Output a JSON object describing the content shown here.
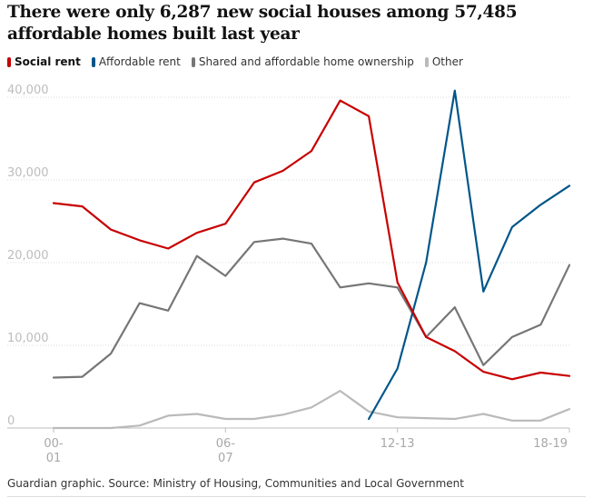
{
  "title": "There were only 6,287 new social houses among 57,485 affordable homes built last year",
  "source": "Guardian graphic. Source: Ministry of Housing, Communities and Local Government",
  "chart_data": {
    "type": "line",
    "title": "There were only 6,287 new social houses among 57,485 affordable homes built last year",
    "xlabel": "",
    "ylabel": "",
    "ylim": [
      0,
      40000
    ],
    "y_ticks": [
      0,
      10000,
      20000,
      30000,
      40000
    ],
    "y_tick_labels": [
      "0",
      "10,000",
      "20,000",
      "30,000",
      "40,000"
    ],
    "x": [
      "00-01",
      "01-02",
      "02-03",
      "03-04",
      "04-05",
      "05-06",
      "06-07",
      "07-08",
      "08-09",
      "09-10",
      "10-11",
      "11-12",
      "12-13",
      "13-14",
      "14-15",
      "15-16",
      "16-17",
      "17-18",
      "18-19"
    ],
    "x_ticks": [
      {
        "index": 0,
        "line1": "00-",
        "line2": "01"
      },
      {
        "index": 6,
        "line1": "06-",
        "line2": "07"
      },
      {
        "index": 12,
        "line1": "12-13",
        "line2": ""
      },
      {
        "index": 18,
        "line1": "18-19",
        "line2": ""
      }
    ],
    "grid": true,
    "legend_position": "top-left",
    "series": [
      {
        "name": "Social rent",
        "color": "#c70000",
        "primary": true,
        "values": [
          27200,
          26800,
          24000,
          22700,
          21700,
          23600,
          24700,
          29700,
          31100,
          33500,
          39600,
          37700,
          17600,
          11000,
          9300,
          6800,
          5900,
          6700,
          6300
        ]
      },
      {
        "name": "Affordable rent",
        "color": "#005689",
        "values": [
          null,
          null,
          null,
          null,
          null,
          null,
          null,
          null,
          null,
          null,
          null,
          1100,
          7200,
          20000,
          40800,
          16500,
          24300,
          27000,
          29300
        ]
      },
      {
        "name": "Shared and affordable home ownership",
        "color": "#767676",
        "values": [
          6100,
          6200,
          9000,
          15100,
          14200,
          20800,
          18400,
          22500,
          22900,
          22300,
          17000,
          17500,
          17000,
          11000,
          14600,
          7600,
          11000,
          12500,
          19700
        ]
      },
      {
        "name": "Other",
        "color": "#bababa",
        "values": [
          0,
          0,
          0,
          300,
          1500,
          1700,
          1100,
          1100,
          1600,
          2500,
          4500,
          2000,
          1300,
          1200,
          1100,
          1700,
          900,
          900,
          2300
        ]
      }
    ]
  }
}
